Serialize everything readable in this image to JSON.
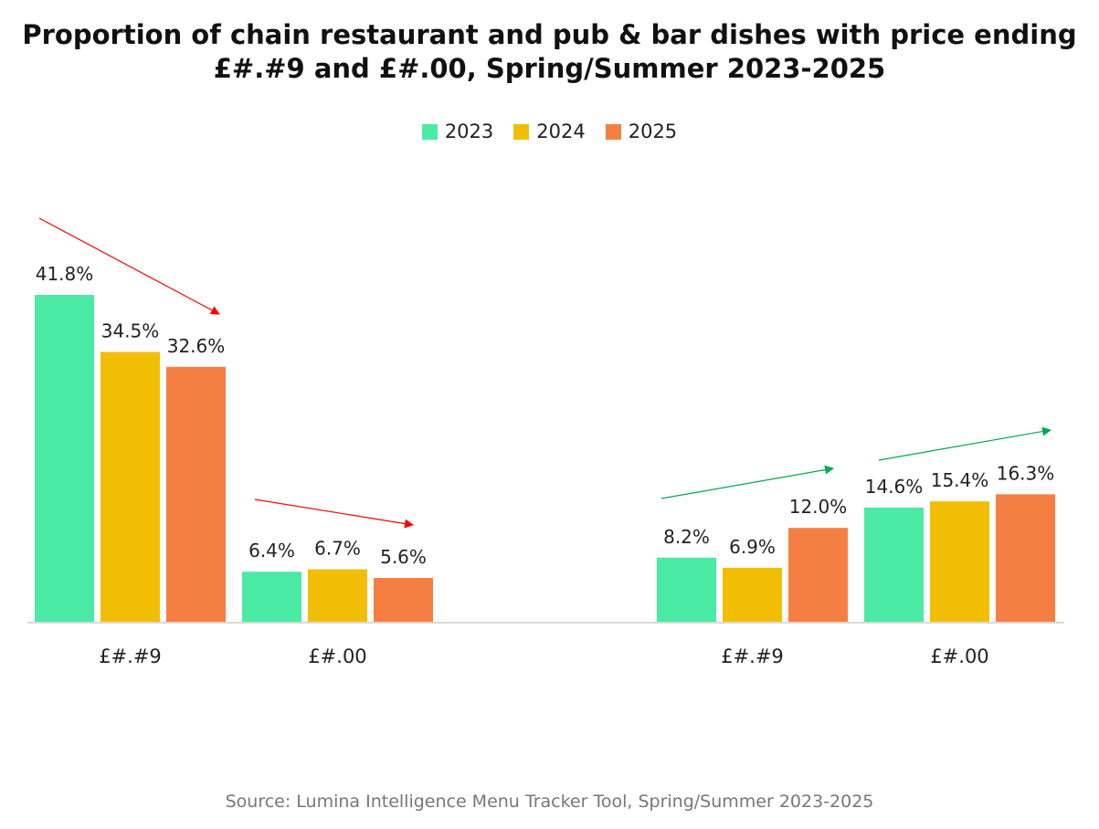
{
  "chart_data": {
    "type": "bar",
    "title": "Proportion of chain restaurant and pub & bar dishes with price ending £#.#9 and £#.00, Spring/Summer 2023-2025",
    "title_lines": [
      "Proportion of chain restaurant and pub & bar dishes with price ending",
      "£#.#9 and £#.00, Spring/Summer 2023-2025"
    ],
    "categories": [
      "£#.#9",
      "£#.00",
      "£#.#9",
      "£#.00"
    ],
    "series": [
      {
        "name": "2023",
        "color": "#4BEAA5",
        "values": [
          41.8,
          6.4,
          8.2,
          14.6
        ]
      },
      {
        "name": "2024",
        "color": "#F2BE05",
        "values": [
          34.5,
          6.7,
          6.9,
          15.4
        ]
      },
      {
        "name": "2025",
        "color": "#F57F42",
        "values": [
          32.6,
          5.6,
          12.0,
          16.3
        ]
      }
    ],
    "value_format": "percent_1dp",
    "ylim": [
      0,
      45
    ],
    "y_axis_visible": false,
    "grid": false,
    "legend_position": "top",
    "annotations": [
      {
        "type": "trend-arrow",
        "category": 0,
        "direction": "down",
        "color": "#FF0000"
      },
      {
        "type": "trend-arrow",
        "category": 1,
        "direction": "down",
        "color": "#FF0000"
      },
      {
        "type": "trend-arrow",
        "category": 2,
        "direction": "up",
        "color": "#00A651"
      },
      {
        "type": "trend-arrow",
        "category": 3,
        "direction": "up",
        "color": "#00A651"
      }
    ]
  },
  "source": "Source: Lumina Intelligence Menu Tracker Tool, Spring/Summer 2023-2025"
}
